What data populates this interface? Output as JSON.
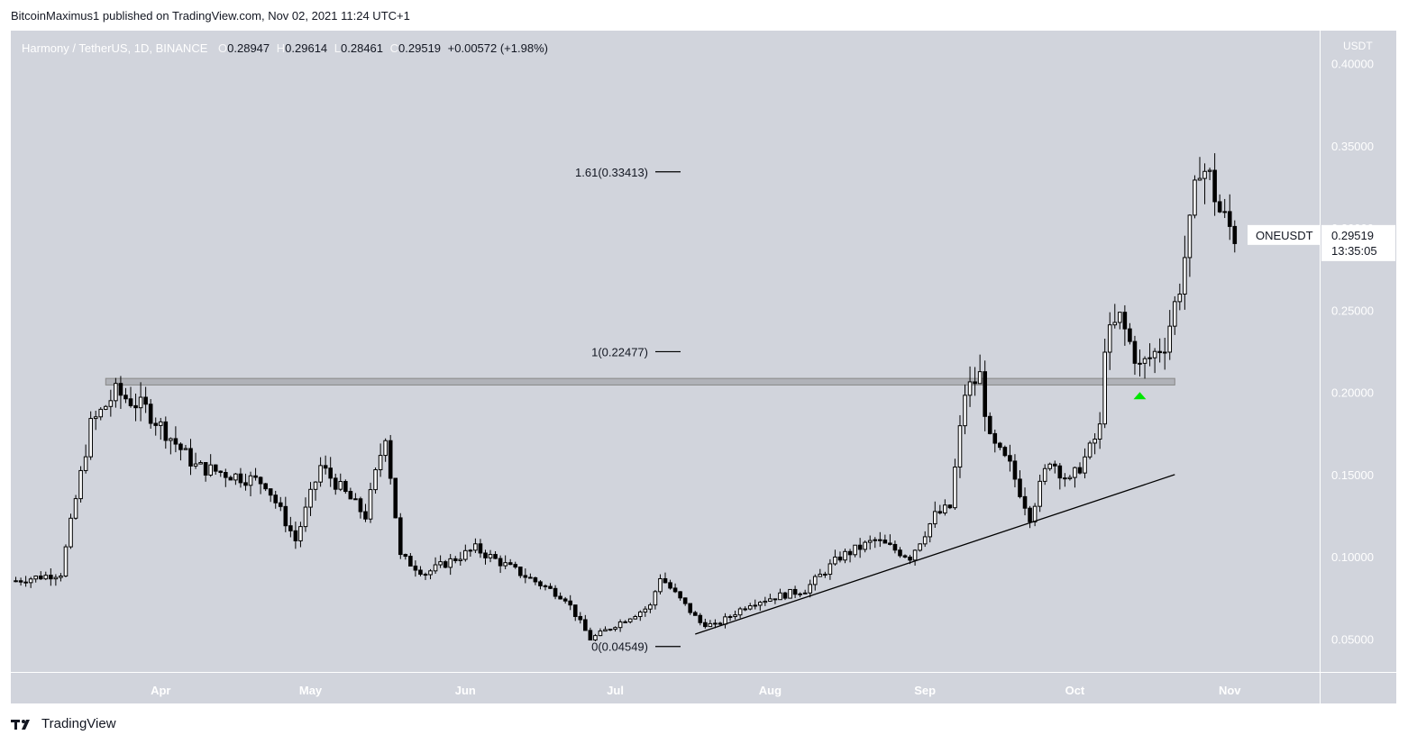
{
  "header": {
    "attribution": "BitcoinMaximus1 published on TradingView.com, Nov 02, 2021 11:24 UTC+1"
  },
  "legend": {
    "symbol": "Harmony / TetherUS, 1D, BINANCE",
    "open_label": "O",
    "open": "0.28947",
    "high_label": "H",
    "high": "0.29614",
    "low_label": "L",
    "low": "0.28461",
    "close_label": "C",
    "close": "0.29519",
    "change": "+0.00572 (+1.98%)"
  },
  "price_axis": {
    "unit": "USDT"
  },
  "last_price": {
    "ticker": "ONEUSDT",
    "value": "0.29519",
    "countdown": "13:35:05"
  },
  "branding": {
    "name": "TradingView",
    "icon": "tradingview-logo-icon"
  },
  "colors": {
    "plot_bg": "#d1d4dc",
    "candle_up": "#ffffff",
    "candle_down": "#000000",
    "arrow": "#00e600"
  },
  "chart_data": {
    "type": "candlestick",
    "ylim": [
      0.03,
      0.42
    ],
    "y_ticks": [
      0.05,
      0.1,
      0.15,
      0.2,
      0.25,
      0.3,
      0.35,
      0.4
    ],
    "y_tick_labels": [
      "0.05000",
      "0.10000",
      "0.15000",
      "0.20000",
      "0.25000",
      "0.30000",
      "0.35000",
      "0.40000"
    ],
    "x_months": [
      {
        "label": "Apr",
        "date": "2021-04-01"
      },
      {
        "label": "May",
        "date": "2021-05-01"
      },
      {
        "label": "Jun",
        "date": "2021-06-01"
      },
      {
        "label": "Jul",
        "date": "2021-07-01"
      },
      {
        "label": "Aug",
        "date": "2021-08-01"
      },
      {
        "label": "Sep",
        "date": "2021-09-01"
      },
      {
        "label": "Oct",
        "date": "2021-10-01"
      },
      {
        "label": "Nov",
        "date": "2021-11-01"
      }
    ],
    "x_range": [
      "2021-03-02",
      "2021-11-19"
    ],
    "fib_levels": [
      {
        "label": "1.61(0.33413)",
        "value": 0.33413
      },
      {
        "label": "1(0.22477)",
        "value": 0.22477
      },
      {
        "label": "0(0.04549)",
        "value": 0.04549
      }
    ],
    "resistance_zone": {
      "low": 0.2045,
      "high": 0.2085,
      "from": "2021-03-21",
      "to": "2021-10-21"
    },
    "trendline": {
      "from": {
        "date": "2021-07-17",
        "price": 0.053
      },
      "to": {
        "date": "2021-10-21",
        "price": 0.15
      }
    },
    "arrow_up": {
      "date": "2021-10-14",
      "price": 0.198
    },
    "key_points": [
      {
        "date": "2021-03-02",
        "price": 0.085
      },
      {
        "date": "2021-03-12",
        "price": 0.09
      },
      {
        "date": "2021-03-18",
        "price": 0.18
      },
      {
        "date": "2021-03-23",
        "price": 0.2
      },
      {
        "date": "2021-03-29",
        "price": 0.19
      },
      {
        "date": "2021-04-08",
        "price": 0.155
      },
      {
        "date": "2021-04-22",
        "price": 0.145
      },
      {
        "date": "2021-04-28",
        "price": 0.11
      },
      {
        "date": "2021-05-03",
        "price": 0.155
      },
      {
        "date": "2021-05-12",
        "price": 0.125
      },
      {
        "date": "2021-05-16",
        "price": 0.175
      },
      {
        "date": "2021-05-19",
        "price": 0.1
      },
      {
        "date": "2021-05-24",
        "price": 0.09
      },
      {
        "date": "2021-06-03",
        "price": 0.105
      },
      {
        "date": "2021-06-15",
        "price": 0.085
      },
      {
        "date": "2021-06-21",
        "price": 0.075
      },
      {
        "date": "2021-06-26",
        "price": 0.05
      },
      {
        "date": "2021-07-03",
        "price": 0.062
      },
      {
        "date": "2021-07-08",
        "price": 0.07
      },
      {
        "date": "2021-07-10",
        "price": 0.088
      },
      {
        "date": "2021-07-18",
        "price": 0.06
      },
      {
        "date": "2021-07-21",
        "price": 0.058
      },
      {
        "date": "2021-07-28",
        "price": 0.072
      },
      {
        "date": "2021-08-08",
        "price": 0.08
      },
      {
        "date": "2021-08-15",
        "price": 0.1
      },
      {
        "date": "2021-08-22",
        "price": 0.11
      },
      {
        "date": "2021-08-29",
        "price": 0.1
      },
      {
        "date": "2021-09-03",
        "price": 0.125
      },
      {
        "date": "2021-09-06",
        "price": 0.13
      },
      {
        "date": "2021-09-09",
        "price": 0.2
      },
      {
        "date": "2021-09-12",
        "price": 0.21
      },
      {
        "date": "2021-09-14",
        "price": 0.17
      },
      {
        "date": "2021-09-18",
        "price": 0.155
      },
      {
        "date": "2021-09-22",
        "price": 0.125
      },
      {
        "date": "2021-09-26",
        "price": 0.16
      },
      {
        "date": "2021-09-30",
        "price": 0.145
      },
      {
        "date": "2021-10-04",
        "price": 0.165
      },
      {
        "date": "2021-10-06",
        "price": 0.178
      },
      {
        "date": "2021-10-07",
        "price": 0.23
      },
      {
        "date": "2021-10-10",
        "price": 0.245
      },
      {
        "date": "2021-10-14",
        "price": 0.215
      },
      {
        "date": "2021-10-19",
        "price": 0.23
      },
      {
        "date": "2021-10-22",
        "price": 0.265
      },
      {
        "date": "2021-10-24",
        "price": 0.3
      },
      {
        "date": "2021-10-26",
        "price": 0.34
      },
      {
        "date": "2021-10-28",
        "price": 0.33
      },
      {
        "date": "2021-10-30",
        "price": 0.31
      },
      {
        "date": "2021-11-02",
        "price": 0.2952
      }
    ]
  }
}
